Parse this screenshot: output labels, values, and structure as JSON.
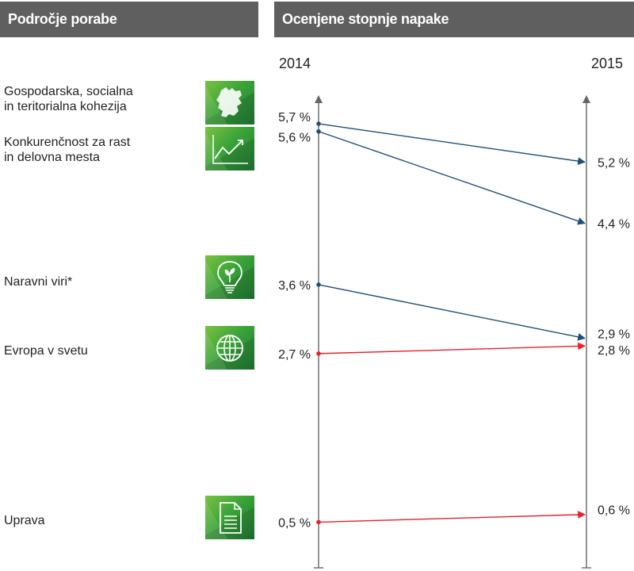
{
  "header": {
    "left_title": "Področje porabe",
    "right_title": "Ocenjene stopnje napake"
  },
  "colors": {
    "header_bg": "#5f5f5f",
    "axis": "#666666",
    "decrease": "#1f4e79",
    "increase": "#e8202a",
    "icon_green": "#3aa338"
  },
  "areas": [
    {
      "label_lines": [
        "Gospodarska, socialna",
        "in teritorialna kohezija"
      ],
      "icon": "eu-map-icon"
    },
    {
      "label_lines": [
        "Konkurenčnost za rast",
        "in delovna mesta"
      ],
      "icon": "growth-chart-icon"
    },
    {
      "label_lines": [
        "Naravni viri*"
      ],
      "icon": "lightbulb-plant-icon"
    },
    {
      "label_lines": [
        "Evropa v svetu"
      ],
      "icon": "globe-icon"
    },
    {
      "label_lines": [
        "Uprava"
      ],
      "icon": "document-icon"
    }
  ],
  "chart_data": {
    "type": "line",
    "x": [
      "2014",
      "2015"
    ],
    "ylim": [
      0,
      6.3
    ],
    "unit": "%",
    "series": [
      {
        "name": "Gospodarska, socialna in teritorialna kohezija",
        "values": [
          5.7,
          5.2
        ],
        "labels": [
          "5,7 %",
          "5,2 %"
        ],
        "color": "#1f4e79"
      },
      {
        "name": "Konkurenčnost za rast in delovna mesta",
        "values": [
          5.6,
          4.4
        ],
        "labels": [
          "5,6 %",
          "4,4 %"
        ],
        "color": "#1f4e79"
      },
      {
        "name": "Naravni viri*",
        "values": [
          3.6,
          2.9
        ],
        "labels": [
          "3,6 %",
          "2,9 %"
        ],
        "color": "#1f4e79"
      },
      {
        "name": "Evropa v svetu",
        "values": [
          2.7,
          2.8
        ],
        "labels": [
          "2,7 %",
          "2,8 %"
        ],
        "color": "#e8202a"
      },
      {
        "name": "Uprava",
        "values": [
          0.5,
          0.6
        ],
        "labels": [
          "0,5 %",
          "0,6 %"
        ],
        "color": "#e8202a"
      }
    ]
  }
}
